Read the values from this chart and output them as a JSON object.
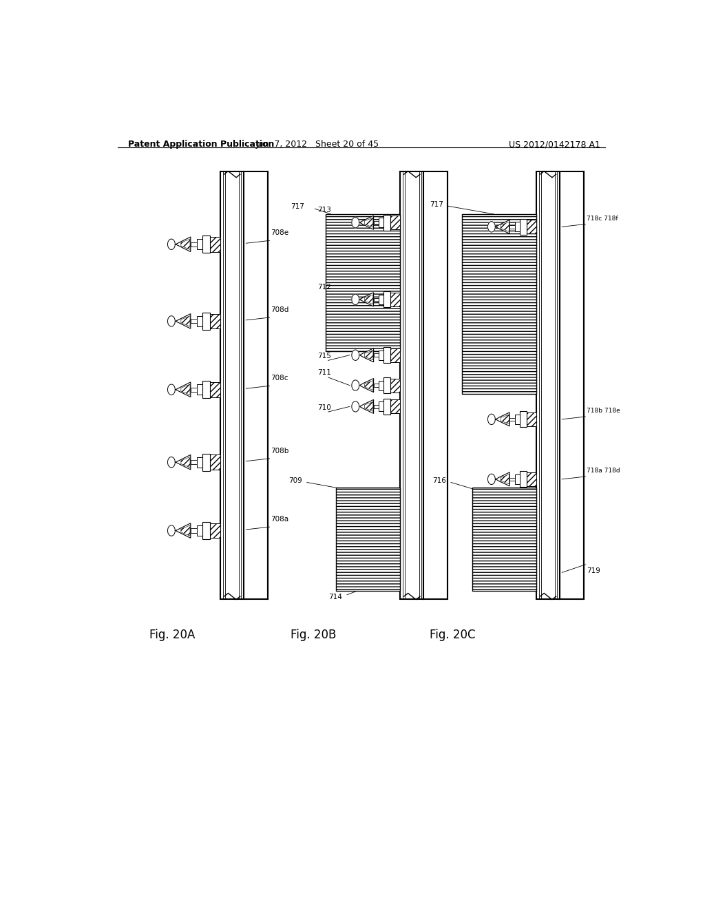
{
  "bg_color": "#ffffff",
  "line_color": "#000000",
  "header_left": "Patent Application Publication",
  "header_center": "Jun. 7, 2012   Sheet 20 of 45",
  "header_right": "US 2012/0142178 A1"
}
